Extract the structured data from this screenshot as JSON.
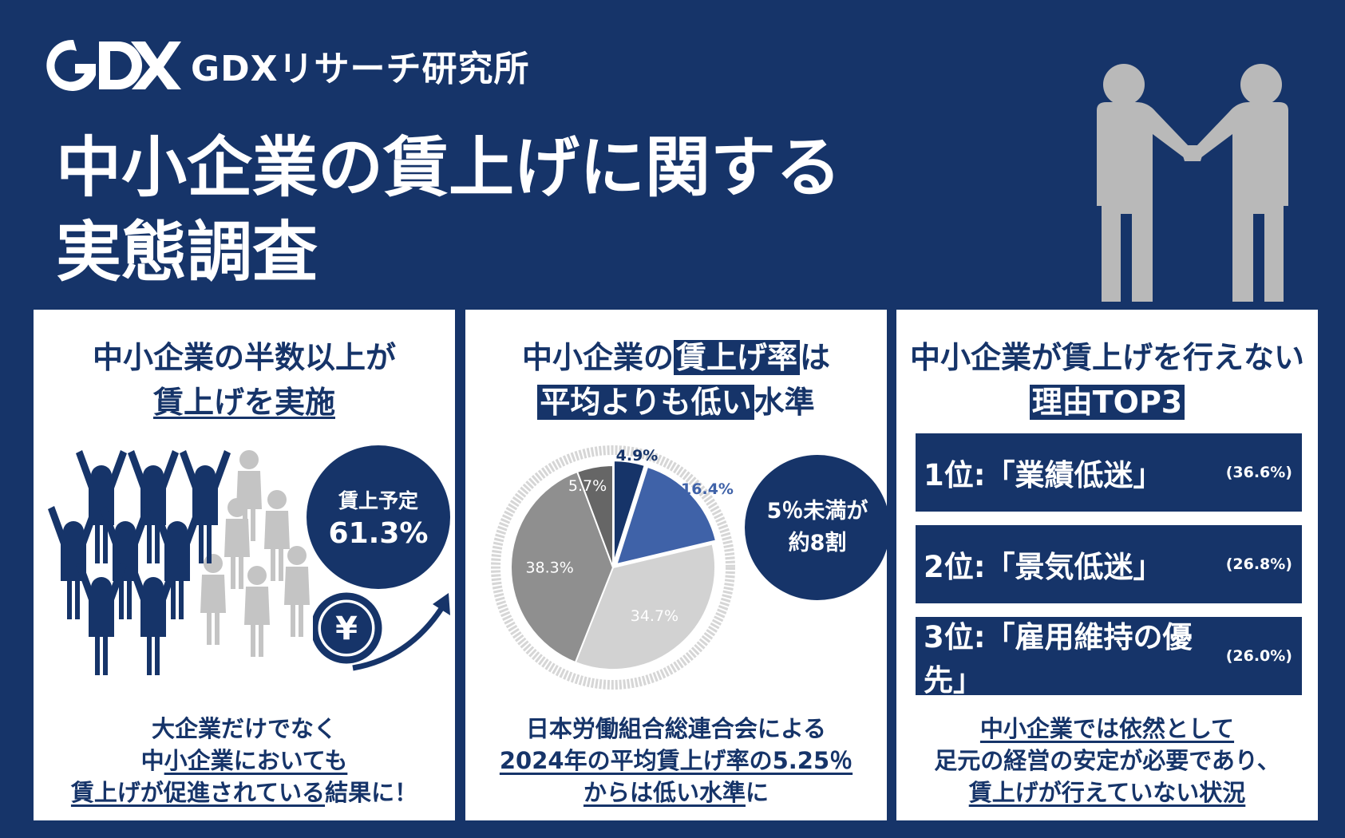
{
  "header": {
    "brand": "GDXリサーチ研究所",
    "title_line1": "中小企業の賃上げに関する",
    "title_line2": "実態調査"
  },
  "panel1": {
    "title_line1": "中小企業の半数以上が",
    "title_line2": "賃上げを実施",
    "badge_label": "賃上予定",
    "badge_value": "61.3%",
    "foot_line1": "大企業だけでなく",
    "foot_line2a": "中",
    "foot_line2b": "小企業においても",
    "foot_line3a": "賃上げが促進されている",
    "foot_line3b": "結果に！"
  },
  "panel2": {
    "title_line1a": "中小企業の",
    "title_line1b": "賃上げ率",
    "title_line1c": "は",
    "title_line2a": "平均よりも低い",
    "title_line2b": "水準",
    "badge_line1": "5％未満が",
    "badge_line2": "約8割",
    "foot_line1": "日本労働組合総連合会による",
    "foot_line2": "2024年の平均賃上げ率の5.25％",
    "foot_line3a": "からは低い水準",
    "foot_line3b": "に"
  },
  "chart_data": {
    "type": "pie",
    "values": [
      4.9,
      16.4,
      34.7,
      38.3,
      5.7
    ],
    "labels": [
      "4.9%",
      "16.4%",
      "34.7%",
      "38.3%",
      "5.7%"
    ],
    "colors": [
      "#163469",
      "#3f62a8",
      "#d2d2d2",
      "#8f8f8f",
      "#666666"
    ]
  },
  "panel3": {
    "title_line1": "中小企業が賃上げを行えない",
    "title_line2": "理由TOP3",
    "ranks": [
      {
        "label": "1位:「業績低迷」",
        "pct": "(36.6%)"
      },
      {
        "label": "2位:「景気低迷」",
        "pct": "(26.8%)"
      },
      {
        "label": "3位:「雇用維持の優先」",
        "pct": "(26.0%)"
      }
    ],
    "foot_line1": "中小企業では依然として",
    "foot_line2": "足元の経営の安定が必要であり、",
    "foot_line3": "賃上げが行えていない状況"
  }
}
